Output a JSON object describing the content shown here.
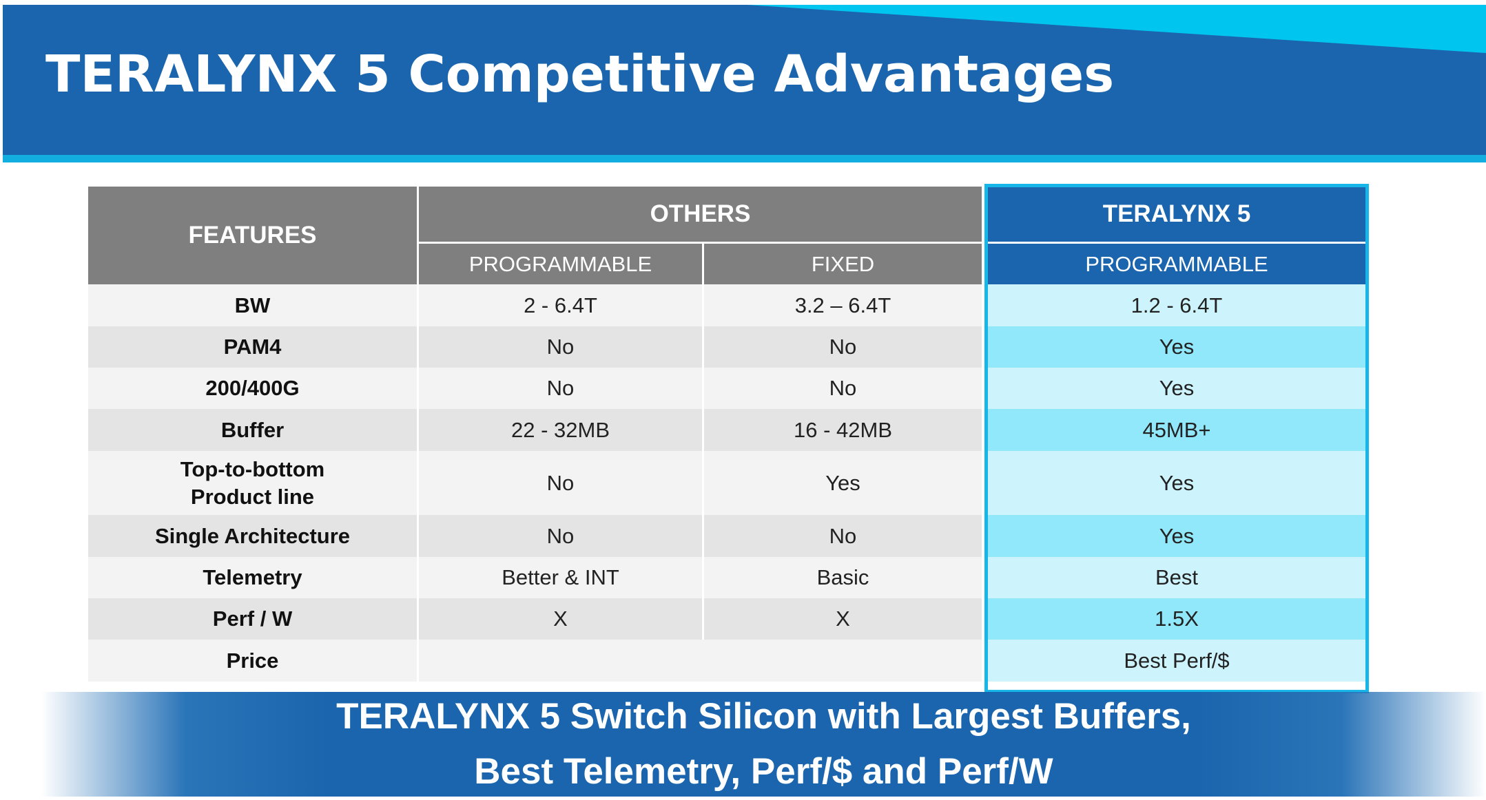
{
  "title": "TERALYNX 5 Competitive Advantages",
  "table": {
    "features_header": "FEATURES",
    "others_header": "OTHERS",
    "teralynx_header": "TERALYNX 5",
    "others_programmable_header": "PROGRAMMABLE",
    "others_fixed_header": "FIXED",
    "teralynx_programmable_header": "PROGRAMMABLE",
    "rows": [
      {
        "feature": "BW",
        "programmable": "2 - 6.4T",
        "fixed": "3.2 – 6.4T",
        "teralynx": "1.2 - 6.4T"
      },
      {
        "feature": "PAM4",
        "programmable": "No",
        "fixed": "No",
        "teralynx": "Yes"
      },
      {
        "feature": "200/400G",
        "programmable": "No",
        "fixed": "No",
        "teralynx": "Yes"
      },
      {
        "feature": "Buffer",
        "programmable": "22 - 32MB",
        "fixed": "16 - 42MB",
        "teralynx": "45MB+"
      },
      {
        "feature_line1": "Top-to-bottom",
        "feature_line2": "Product line",
        "programmable": "No",
        "fixed": "Yes",
        "teralynx": "Yes"
      },
      {
        "feature": "Single Architecture",
        "programmable": "No",
        "fixed": "No",
        "teralynx": "Yes"
      },
      {
        "feature": "Telemetry",
        "programmable": "Better & INT",
        "fixed": "Basic",
        "teralynx": "Best"
      },
      {
        "feature": "Perf / W",
        "programmable": "X",
        "fixed": "X",
        "teralynx": "1.5X"
      },
      {
        "feature": "Price",
        "programmable": "",
        "fixed": "",
        "teralynx": "Best Perf/$"
      }
    ]
  },
  "banner": {
    "line1": "TERALYNX 5 Switch Silicon with Largest Buffers,",
    "line2": "Best Telemetry, Perf/$ and Perf/W"
  },
  "colors": {
    "header_blue": "#1a65ad",
    "accent_cyan": "#00c6ef",
    "header_gray": "#7f7f7f",
    "row_light": "#f3f3f3",
    "row_dark": "#e4e4e4",
    "teralynx_light": "#cdf3fc",
    "teralynx_dark": "#92e8fb"
  }
}
